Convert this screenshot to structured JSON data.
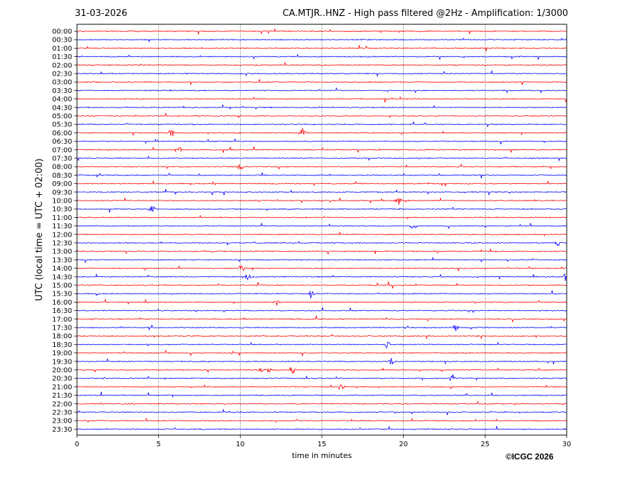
{
  "header": {
    "date": "31-03-2026",
    "title": "CA.MTJR..HNZ - High pass filtered @2Hz - Amplification: 1/3000"
  },
  "footer": {
    "copyright": "©ICGC 2026"
  },
  "chart_data": {
    "type": "line",
    "title": "CA.MTJR..HNZ - High pass filtered @2Hz - Amplification: 1/3000",
    "xlabel": "time in minutes",
    "ylabel": "UTC (local time = UTC + 02:00)",
    "xlim": [
      0,
      30
    ],
    "x_ticks": [
      0,
      5,
      10,
      15,
      20,
      25,
      30
    ],
    "vertical_gridlines_at": [
      5,
      10,
      15,
      20,
      25
    ],
    "row_labels": [
      "00:00",
      "00:30",
      "01:00",
      "01:30",
      "02:00",
      "02:30",
      "03:00",
      "03:30",
      "04:00",
      "04:30",
      "05:00",
      "05:30",
      "06:00",
      "06:30",
      "07:00",
      "07:30",
      "08:00",
      "08:30",
      "09:00",
      "09:30",
      "10:00",
      "10:30",
      "11:00",
      "11:30",
      "12:00",
      "12:30",
      "13:00",
      "13:30",
      "14:00",
      "14:30",
      "15:00",
      "15:30",
      "16:00",
      "16:30",
      "17:00",
      "17:30",
      "18:00",
      "18:30",
      "19:00",
      "19:30",
      "20:00",
      "20:30",
      "21:00",
      "21:30",
      "22:00",
      "22:30",
      "23:00",
      "23:30"
    ],
    "row_colors": [
      "#ff0000",
      "#0000ff"
    ],
    "events": [
      {
        "row": "06:00",
        "minute": 13.8
      },
      {
        "row": "06:00",
        "minute": 5.8
      },
      {
        "row": "07:00",
        "minute": 6.2
      },
      {
        "row": "08:00",
        "minute": 10.0
      },
      {
        "row": "10:00",
        "minute": 19.7
      },
      {
        "row": "10:30",
        "minute": 4.6
      },
      {
        "row": "11:30",
        "minute": 20.6
      },
      {
        "row": "12:30",
        "minute": 29.5
      },
      {
        "row": "14:00",
        "minute": 10.1
      },
      {
        "row": "14:30",
        "minute": 10.5
      },
      {
        "row": "14:30",
        "minute": 29.9
      },
      {
        "row": "15:30",
        "minute": 14.3
      },
      {
        "row": "16:00",
        "minute": 12.2
      },
      {
        "row": "17:30",
        "minute": 23.2
      },
      {
        "row": "18:30",
        "minute": 19.0
      },
      {
        "row": "19:30",
        "minute": 19.3
      },
      {
        "row": "20:00",
        "minute": 11.3
      },
      {
        "row": "20:00",
        "minute": 11.7
      },
      {
        "row": "20:00",
        "minute": 13.2
      },
      {
        "row": "20:30",
        "minute": 23.0
      },
      {
        "row": "21:00",
        "minute": 16.2
      }
    ]
  }
}
